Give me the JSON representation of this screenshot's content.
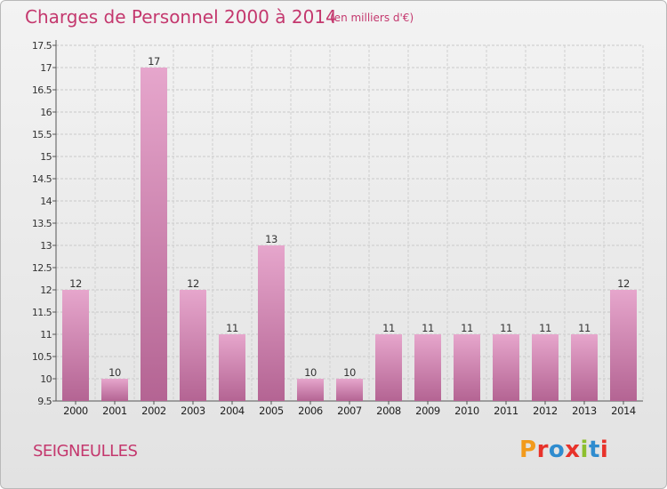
{
  "header": {
    "title": "Charges de Personnel 2000 à 2014",
    "subtitle": "(en milliers d'€)"
  },
  "footer": {
    "commune": "SEIGNEULLES",
    "logo_text": "Proxiti",
    "logo_colors": [
      "#f29a1c",
      "#e8322a",
      "#2f8ccf",
      "#e8322a",
      "#8dbf2e",
      "#2f8ccf",
      "#e8322a"
    ]
  },
  "chart_data": {
    "type": "bar",
    "categories": [
      "2000",
      "2001",
      "2002",
      "2003",
      "2004",
      "2005",
      "2006",
      "2007",
      "2008",
      "2009",
      "2010",
      "2011",
      "2012",
      "2013",
      "2014"
    ],
    "values": [
      12,
      10,
      17,
      12,
      11,
      13,
      10,
      10,
      11,
      11,
      11,
      11,
      11,
      11,
      12
    ],
    "value_labels": [
      "12",
      "10",
      "17",
      "12",
      "11",
      "13",
      "10",
      "10",
      "11",
      "11",
      "11",
      "11",
      "11",
      "11",
      "12"
    ],
    "ylim": [
      9.5,
      17.5
    ],
    "yticks": [
      "9.5",
      "10",
      "10.5",
      "11",
      "11.5",
      "12",
      "12.5",
      "13",
      "13.5",
      "14",
      "14.5",
      "15",
      "15.5",
      "16",
      "16.5",
      "17",
      "17.5"
    ],
    "ytick_values": [
      9.5,
      10,
      10.5,
      11,
      11.5,
      12,
      12.5,
      13,
      13.5,
      14,
      14.5,
      15,
      15.5,
      16,
      16.5,
      17,
      17.5
    ],
    "grid": true,
    "bar_color_top": "#e6a6cc",
    "bar_color_bottom": "#b46493",
    "title": "Charges de Personnel 2000 à 2014",
    "xlabel": "",
    "ylabel": ""
  }
}
